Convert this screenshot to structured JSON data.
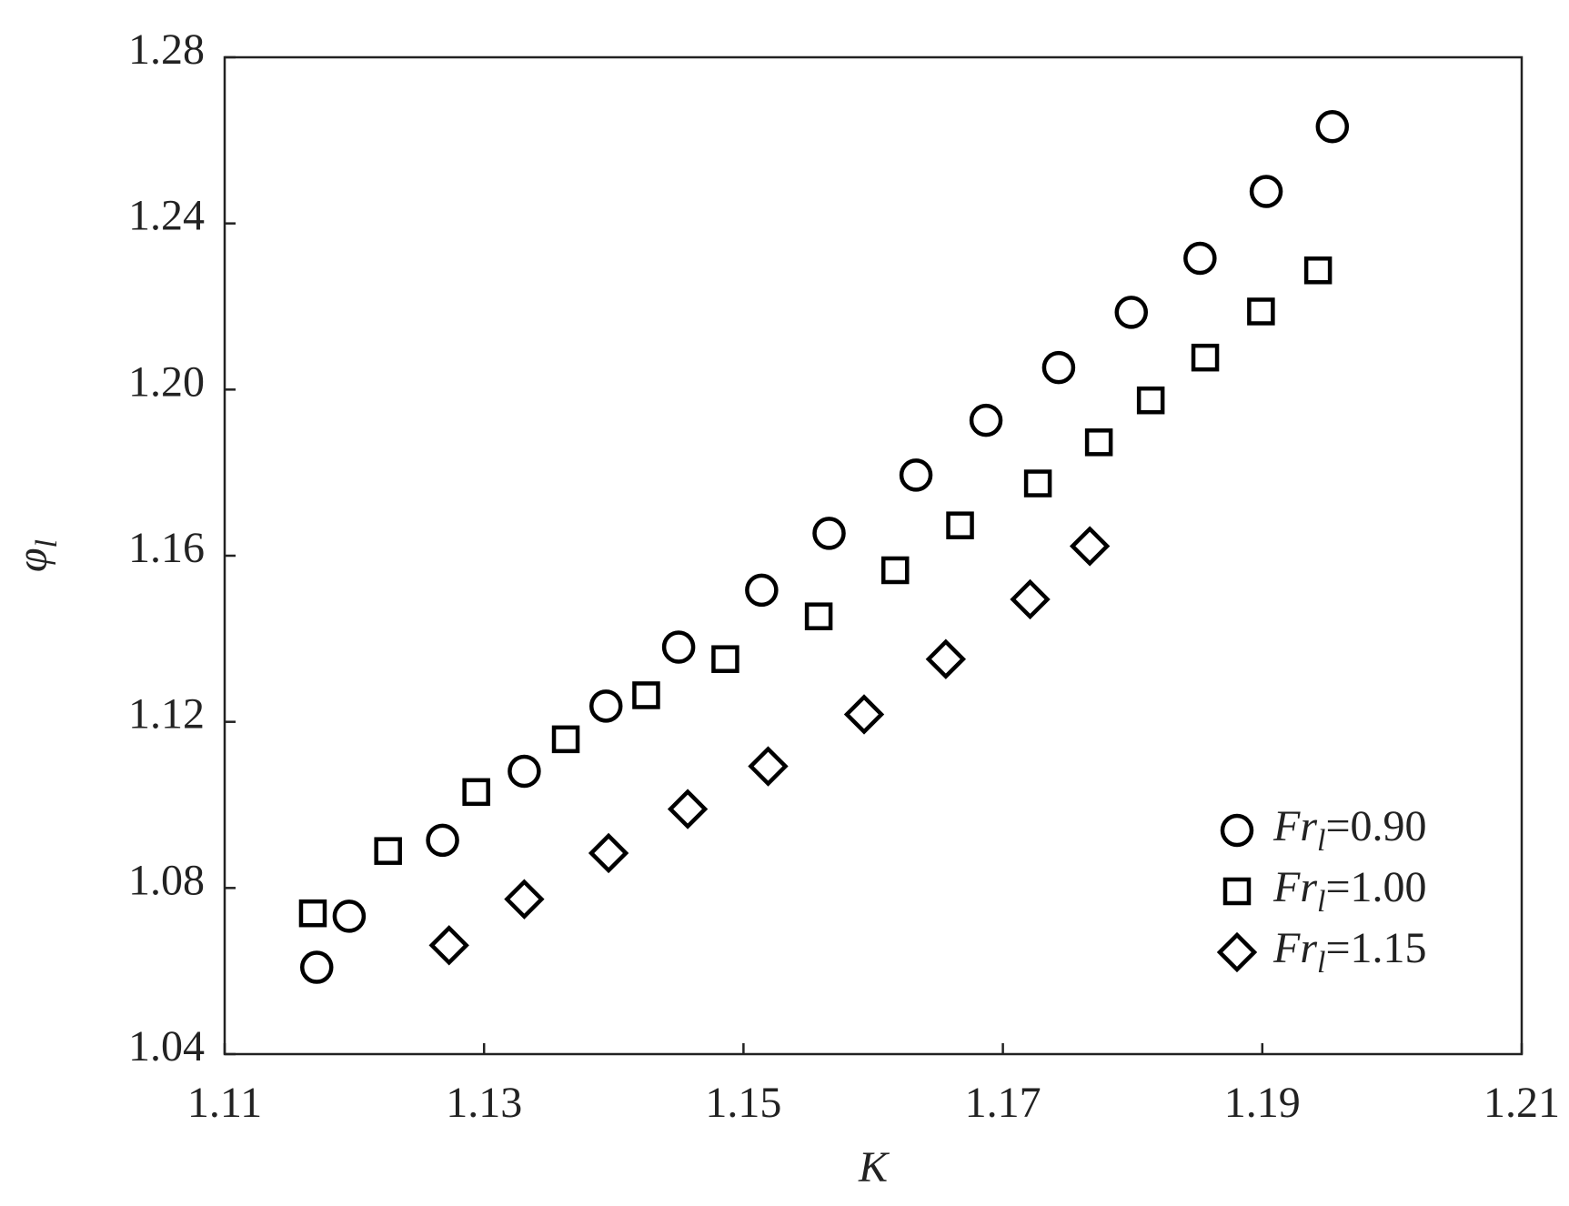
{
  "chart_data": {
    "type": "scatter",
    "x_label": "K",
    "y_label": "φl",
    "xlim": [
      1.11,
      1.21
    ],
    "xticks": [
      1.11,
      1.13,
      1.15,
      1.17,
      1.19,
      1.21
    ],
    "ylim": [
      1.04,
      1.28
    ],
    "yticks": [
      1.04,
      1.08,
      1.12,
      1.16,
      {
        "value": 1.2,
        "label": "1.20"
      },
      1.24,
      1.28
    ],
    "legend": "lower right",
    "series": [
      {
        "name": "Frl=0.90",
        "marker": "circle",
        "color": "#000000",
        "x": [
          1.1171,
          1.1196,
          1.1268,
          1.1331,
          1.1394,
          1.145,
          1.1514,
          1.1566,
          1.1633,
          1.1687,
          1.1743,
          1.1799,
          1.1852,
          1.1903,
          1.1954
        ],
        "values": [
          1.0609,
          1.0732,
          1.0915,
          1.1081,
          1.1238,
          1.138,
          1.1517,
          1.1654,
          1.1794,
          1.1926,
          1.2053,
          1.2186,
          1.2316,
          1.2477,
          1.2633
        ]
      },
      {
        "name": "Frl=1.00",
        "marker": "square",
        "color": "#000000",
        "x": [
          1.1168,
          1.1226,
          1.1294,
          1.1363,
          1.1425,
          1.1486,
          1.1558,
          1.1617,
          1.1667,
          1.1727,
          1.1774,
          1.1814,
          1.1856,
          1.1899,
          1.1943
        ],
        "values": [
          1.0739,
          1.0889,
          1.1031,
          1.1158,
          1.1264,
          1.1351,
          1.1454,
          1.1565,
          1.1673,
          1.1774,
          1.1873,
          1.1974,
          1.2077,
          1.2188,
          1.2287
        ]
      },
      {
        "name": "Frl=1.15",
        "marker": "diamond",
        "color": "#000000",
        "x": [
          1.1273,
          1.1331,
          1.1396,
          1.1457,
          1.1519,
          1.1593,
          1.1656,
          1.1721,
          1.1767
        ],
        "values": [
          1.0662,
          1.0773,
          1.0884,
          1.099,
          1.1093,
          1.1218,
          1.1351,
          1.1495,
          1.1623
        ]
      }
    ]
  }
}
